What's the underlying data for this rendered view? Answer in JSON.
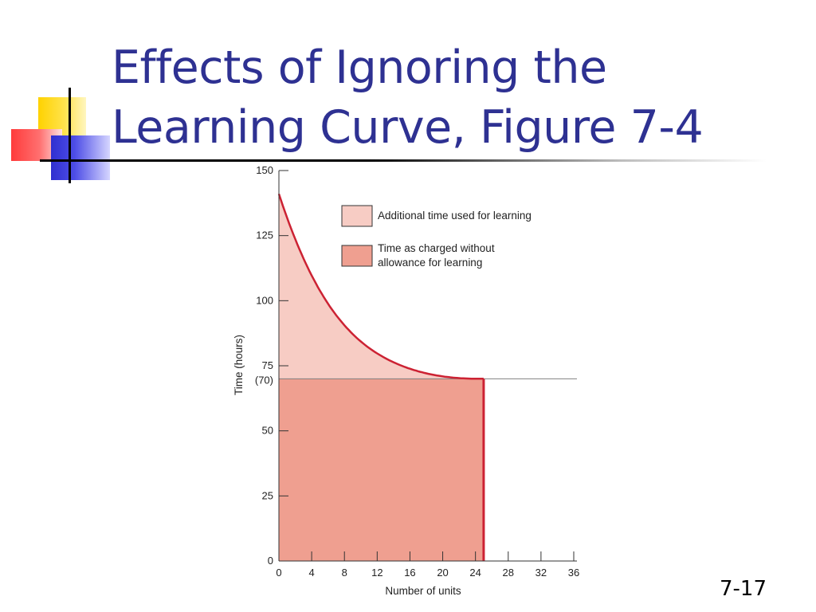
{
  "slide": {
    "title_lines": [
      "Effects of Ignoring the",
      "Learning Curve, Figure 7-4"
    ],
    "number": "7-17"
  },
  "colors": {
    "title": "#2e3192",
    "learning_area": "#f7ccc4",
    "charged_area": "#ef9f90",
    "curve": "#cc2233",
    "reference_line": "#808080"
  },
  "chart_data": {
    "type": "area",
    "title": "",
    "xlabel": "Number of units",
    "ylabel": "Time (hours)",
    "xlim": [
      0,
      36
    ],
    "ylim": [
      0,
      150
    ],
    "x_ticks": [
      0,
      4,
      8,
      12,
      16,
      20,
      24,
      28,
      32,
      36
    ],
    "x_tick_labels": [
      "0",
      "4",
      "8",
      "12",
      "16",
      "20",
      "24",
      "28",
      "32",
      "36"
    ],
    "y_ticks": [
      0,
      25,
      50,
      75,
      100,
      125,
      150
    ],
    "y_tick_labels": [
      "0",
      "25",
      "50",
      "75",
      "100",
      "125",
      "150"
    ],
    "reference_line": {
      "y": 70,
      "label": "(70)"
    },
    "end_units": 25,
    "series": [
      {
        "name": "Additional time used for learning",
        "x": [
          0,
          1,
          2,
          4,
          6,
          8,
          10,
          12,
          14,
          16,
          18,
          20,
          22,
          24,
          25
        ],
        "values": [
          141,
          125,
          116,
          103,
          94,
          87,
          82,
          78,
          75,
          73,
          71.8,
          70.9,
          70.3,
          70.05,
          70
        ]
      },
      {
        "name": "Time as charged without allowance for learning",
        "x": [
          0,
          25
        ],
        "values": [
          70,
          70
        ]
      }
    ],
    "legend": {
      "placement": "top-right",
      "entries": [
        {
          "label_lines": [
            "Additional time used for learning"
          ]
        },
        {
          "label_lines": [
            "Time as charged without",
            "allowance for learning"
          ]
        }
      ]
    }
  }
}
